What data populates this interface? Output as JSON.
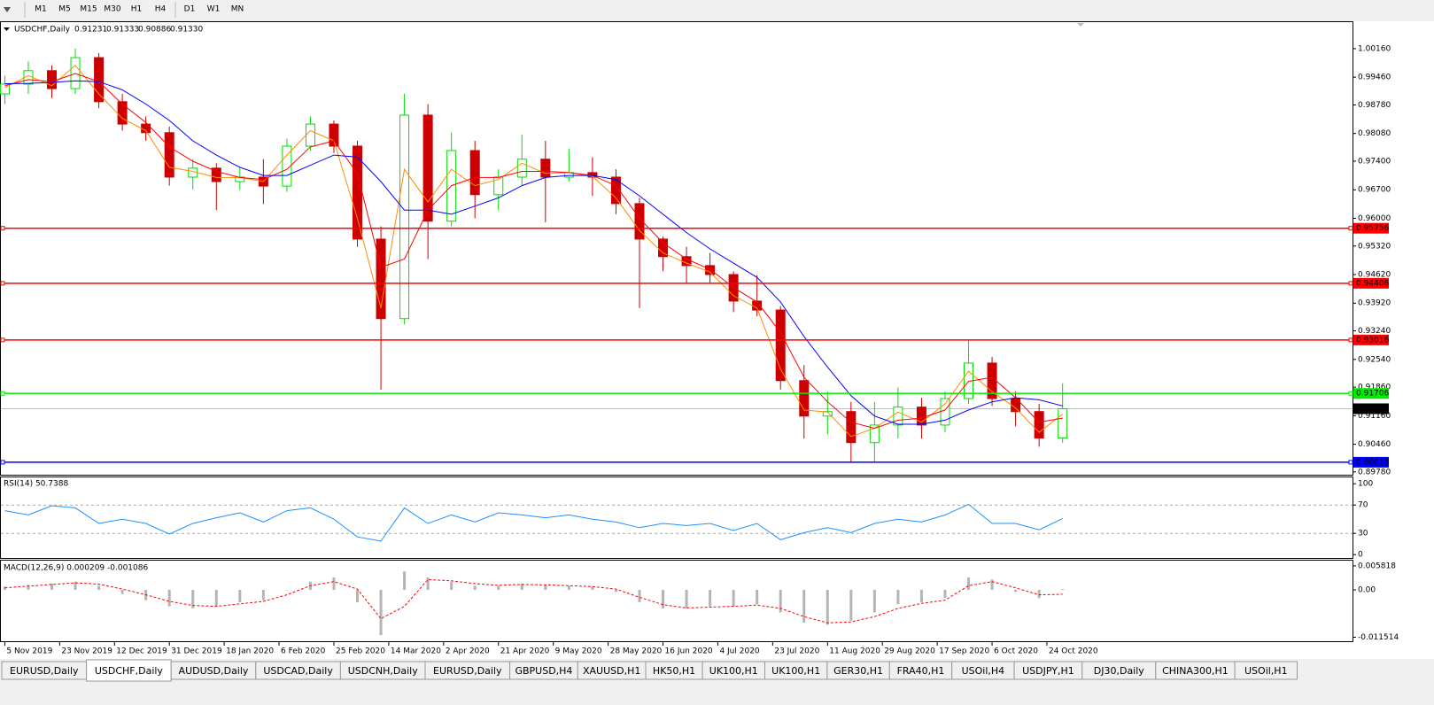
{
  "toolbar": {
    "timeframes": [
      "M1",
      "M5",
      "M15",
      "M30",
      "H1",
      "H4",
      "D1",
      "W1",
      "MN"
    ]
  },
  "tabs": [
    "EURUSD,Daily",
    "USDCHF,Daily",
    "AUDUSD,Daily",
    "USDCAD,Daily",
    "USDCNH,Daily",
    "EURUSD,Daily",
    "GBPUSD,H4",
    "XAUUSD,H1",
    "HK50,H1",
    "UK100,H1",
    "UK100,H1",
    "GER30,H1",
    "FRA40,H1",
    "USOil,H4",
    "USDJPY,H1",
    "DJ30,Daily",
    "CHINA300,H1",
    "USOil,H1"
  ],
  "active_tab": 1,
  "chart_data": [
    {
      "type": "candlestick",
      "title": "USDCHF,Daily",
      "header_values": [
        "0.91231",
        "0.91333",
        "0.90886",
        "0.91330"
      ],
      "x": [
        0,
        6,
        12,
        18,
        24,
        30,
        36,
        42,
        48,
        54,
        60,
        66,
        72,
        78,
        84,
        90,
        96,
        102,
        108,
        114,
        120,
        126,
        132,
        138,
        144,
        150,
        156,
        162,
        168,
        174,
        180,
        186,
        192,
        198,
        204,
        210,
        216,
        222,
        228,
        234,
        240,
        246,
        252,
        258,
        264,
        270
      ],
      "open": [
        0.9905,
        0.9929,
        0.9962,
        0.9918,
        0.9994,
        0.9886,
        0.9831,
        0.981,
        0.9701,
        0.9723,
        0.969,
        0.9701,
        0.9679,
        0.9777,
        0.9831,
        0.9777,
        0.9549,
        0.9354,
        0.9853,
        0.9593,
        0.9766,
        0.9658,
        0.9701,
        0.9745,
        0.9701,
        0.9712,
        0.9701,
        0.9636,
        0.9549,
        0.9506,
        0.9484,
        0.9462,
        0.9397,
        0.9375,
        0.9202,
        0.9115,
        0.9126,
        0.905,
        0.9093,
        0.9137,
        0.9093,
        0.9158,
        0.9245,
        0.9158,
        0.9126,
        0.9061
      ],
      "high": [
        0.995,
        0.9985,
        0.9975,
        1.0016,
        1.0005,
        0.9905,
        0.985,
        0.9825,
        0.9745,
        0.9735,
        0.9725,
        0.9745,
        0.9795,
        0.985,
        0.984,
        0.979,
        0.958,
        0.9905,
        0.988,
        0.981,
        0.979,
        0.972,
        0.9805,
        0.979,
        0.977,
        0.975,
        0.972,
        0.965,
        0.9555,
        0.953,
        0.9515,
        0.947,
        0.946,
        0.9385,
        0.924,
        0.9175,
        0.915,
        0.915,
        0.9185,
        0.916,
        0.9175,
        0.93,
        0.926,
        0.9175,
        0.9145,
        0.9195
      ],
      "low": [
        0.988,
        0.9905,
        0.9895,
        0.9905,
        0.987,
        0.9815,
        0.979,
        0.968,
        0.967,
        0.962,
        0.967,
        0.9635,
        0.9665,
        0.9765,
        0.976,
        0.953,
        0.918,
        0.934,
        0.95,
        0.958,
        0.96,
        0.962,
        0.968,
        0.959,
        0.969,
        0.9655,
        0.961,
        0.938,
        0.947,
        0.944,
        0.944,
        0.937,
        0.936,
        0.918,
        0.906,
        0.907,
        0.9002,
        0.9002,
        0.906,
        0.906,
        0.9075,
        0.9145,
        0.914,
        0.909,
        0.904,
        0.905
      ],
      "close": [
        0.9929,
        0.9962,
        0.9918,
        0.9994,
        0.9886,
        0.9831,
        0.981,
        0.9701,
        0.9723,
        0.969,
        0.9701,
        0.9679,
        0.9777,
        0.9831,
        0.9777,
        0.9549,
        0.9354,
        0.9853,
        0.9593,
        0.9766,
        0.9658,
        0.9701,
        0.9745,
        0.9701,
        0.9712,
        0.9701,
        0.9636,
        0.9549,
        0.9506,
        0.9484,
        0.9462,
        0.9397,
        0.9375,
        0.9202,
        0.9115,
        0.9126,
        0.905,
        0.9093,
        0.9137,
        0.9093,
        0.9158,
        0.9245,
        0.9158,
        0.9126,
        0.9061,
        0.9133
      ],
      "up_color": "#00dd00",
      "down_color": "#cc0000",
      "ma": [
        {
          "color": "#ff8c00",
          "values": [
            0.992,
            0.995,
            0.9925,
            0.9975,
            0.9905,
            0.9845,
            0.9815,
            0.9725,
            0.9715,
            0.97,
            0.97,
            0.969,
            0.9755,
            0.9815,
            0.979,
            0.96,
            0.938,
            0.972,
            0.964,
            0.972,
            0.968,
            0.9695,
            0.9735,
            0.971,
            0.9712,
            0.9703,
            0.965,
            0.957,
            0.9515,
            0.949,
            0.9468,
            0.941,
            0.938,
            0.923,
            0.913,
            0.9125,
            0.9065,
            0.9085,
            0.9125,
            0.91,
            0.9145,
            0.9225,
            0.9175,
            0.9135,
            0.9075,
            0.912
          ]
        },
        {
          "color": "#ff0000",
          "values": [
            0.9925,
            0.994,
            0.9935,
            0.9955,
            0.9935,
            0.988,
            0.9835,
            0.9775,
            0.974,
            0.9715,
            0.97,
            0.9695,
            0.972,
            0.9775,
            0.979,
            0.971,
            0.948,
            0.95,
            0.962,
            0.968,
            0.97,
            0.97,
            0.9715,
            0.9715,
            0.9712,
            0.9705,
            0.968,
            0.96,
            0.954,
            0.95,
            0.9475,
            0.943,
            0.9395,
            0.932,
            0.921,
            0.915,
            0.91,
            0.9085,
            0.9105,
            0.911,
            0.913,
            0.92,
            0.921,
            0.916,
            0.91,
            0.911
          ]
        },
        {
          "color": "#0000ff",
          "values": [
            0.993,
            0.9931,
            0.9933,
            0.9937,
            0.9935,
            0.9915,
            0.988,
            0.984,
            0.979,
            0.9755,
            0.9725,
            0.9705,
            0.9705,
            0.973,
            0.9755,
            0.975,
            0.969,
            0.962,
            0.962,
            0.961,
            0.963,
            0.965,
            0.968,
            0.97,
            0.9705,
            0.9705,
            0.9695,
            0.9655,
            0.961,
            0.9565,
            0.9525,
            0.949,
            0.9455,
            0.9395,
            0.931,
            0.9235,
            0.9165,
            0.9115,
            0.9095,
            0.9095,
            0.9105,
            0.913,
            0.915,
            0.916,
            0.9155,
            0.914
          ]
        }
      ],
      "levels": [
        {
          "value": 0.95756,
          "color": "#ff0000"
        },
        {
          "value": 0.94406,
          "color": "#ff0000"
        },
        {
          "value": 0.93016,
          "color": "#ff0000"
        },
        {
          "value": 0.91706,
          "color": "#00ee00"
        },
        {
          "value": 0.90018,
          "color": "#0000ff"
        }
      ],
      "last_price": {
        "value": 0.9133,
        "label": "0.91330"
      },
      "xlim": [
        -1,
        344
      ],
      "xticks": [
        {
          "value": 0,
          "label": "5 Nov 2019"
        },
        {
          "value": 14,
          "label": "23 Nov 2019"
        },
        {
          "value": 28,
          "label": "12 Dec 2019"
        },
        {
          "value": 42,
          "label": "31 Dec 2019"
        },
        {
          "value": 56,
          "label": "18 Jan 2020"
        },
        {
          "value": 70,
          "label": "6 Feb 2020"
        },
        {
          "value": 84,
          "label": "25 Feb 2020"
        },
        {
          "value": 98,
          "label": "14 Mar 2020"
        },
        {
          "value": 112,
          "label": "2 Apr 2020"
        },
        {
          "value": 126,
          "label": "21 Apr 2020"
        },
        {
          "value": 140,
          "label": "9 May 2020"
        },
        {
          "value": 154,
          "label": "28 May 2020"
        },
        {
          "value": 168,
          "label": "16 Jun 2020"
        },
        {
          "value": 182,
          "label": "4 Jul 2020"
        },
        {
          "value": 196,
          "label": "23 Jul 2020"
        },
        {
          "value": 210,
          "label": "11 Aug 2020"
        },
        {
          "value": 224,
          "label": "29 Aug 2020"
        },
        {
          "value": 238,
          "label": "17 Sep 2020"
        },
        {
          "value": 252,
          "label": "6 Oct 2020"
        },
        {
          "value": 266,
          "label": "24 Oct 2020"
        }
      ],
      "ylim": [
        0.8969,
        1.0081
      ],
      "yticks": [
        {
          "value": 1.0016,
          "label": "1.00160"
        },
        {
          "value": 0.9946,
          "label": "0.99460"
        },
        {
          "value": 0.9878,
          "label": "0.98780"
        },
        {
          "value": 0.9808,
          "label": "0.98080"
        },
        {
          "value": 0.974,
          "label": "0.97400"
        },
        {
          "value": 0.967,
          "label": "0.96700"
        },
        {
          "value": 0.96,
          "label": "0.96000"
        },
        {
          "value": 0.9532,
          "label": "0.95320"
        },
        {
          "value": 0.9462,
          "label": "0.94620"
        },
        {
          "value": 0.9392,
          "label": "0.93920"
        },
        {
          "value": 0.9324,
          "label": "0.93240"
        },
        {
          "value": 0.9254,
          "label": "0.92540"
        },
        {
          "value": 0.9186,
          "label": "0.91860"
        },
        {
          "value": 0.9116,
          "label": "0.91160"
        },
        {
          "value": 0.9046,
          "label": "0.90460"
        },
        {
          "value": 0.8978,
          "label": "0.89780"
        }
      ]
    },
    {
      "type": "line",
      "title": "RSI(14) 50.7388",
      "color": "#1e90ff",
      "values": [
        62,
        56,
        69,
        66,
        44,
        50,
        44,
        29,
        44,
        52,
        59,
        46,
        62,
        66,
        50,
        25,
        19,
        66,
        44,
        56,
        46,
        59,
        56,
        52,
        56,
        50,
        46,
        38,
        44,
        41,
        44,
        34,
        44,
        21,
        31,
        38,
        31,
        44,
        50,
        46,
        56,
        71,
        44,
        44,
        35,
        51
      ],
      "levels": [
        70,
        30
      ],
      "ylim": [
        -6,
        109
      ],
      "yticks": [
        100,
        70,
        30,
        0
      ]
    },
    {
      "type": "macd",
      "title": "MACD(12,26,9) 0.000209 -0.001086",
      "hist_color": "#b4b4b4",
      "signal_color": "#ff0000",
      "histogram": [
        0.0008,
        0.0012,
        0.0015,
        0.002,
        0.001,
        -0.001,
        -0.0025,
        -0.004,
        -0.0045,
        -0.004,
        -0.003,
        -0.0025,
        0,
        0.002,
        0.003,
        -0.003,
        -0.011,
        0.0045,
        0.003,
        0.002,
        0.001,
        0.001,
        0.0015,
        0.0012,
        0.001,
        0.0008,
        -0.0005,
        -0.003,
        -0.0045,
        -0.0045,
        -0.004,
        -0.004,
        -0.0035,
        -0.0055,
        -0.008,
        -0.0085,
        -0.0075,
        -0.0055,
        -0.0035,
        -0.003,
        -0.002,
        0.003,
        0.0025,
        -0.0005,
        -0.002,
        0.000209
      ],
      "signal": [
        0.0005,
        0.0009,
        0.0013,
        0.0017,
        0.0014,
        0.0002,
        -0.0012,
        -0.0028,
        -0.0038,
        -0.004,
        -0.0034,
        -0.0028,
        -0.0012,
        0.001,
        0.002,
        0.0002,
        -0.007,
        -0.004,
        0.0025,
        0.0022,
        0.0015,
        0.0011,
        0.0013,
        0.0012,
        0.001,
        0.0008,
        0.0002,
        -0.0018,
        -0.0036,
        -0.0044,
        -0.0042,
        -0.004,
        -0.0037,
        -0.0045,
        -0.0065,
        -0.008,
        -0.0078,
        -0.0065,
        -0.0045,
        -0.0033,
        -0.0025,
        0.001,
        0.002,
        0.0005,
        -0.0012,
        -0.001086
      ],
      "ylim": [
        -0.0127,
        0.0071
      ],
      "yticks": [
        0.005818,
        {
          "value": 0,
          "label": "0.00"
        },
        -0.011514
      ]
    }
  ]
}
